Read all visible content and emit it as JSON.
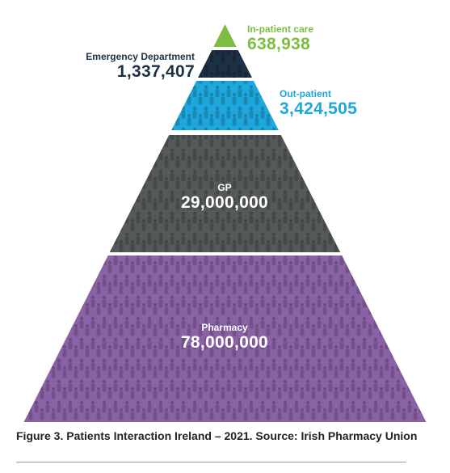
{
  "chart_data": {
    "type": "pyramid",
    "caption": "Figure 3. Patients Interaction Ireland – 2021. Source: Irish Pharmacy Union",
    "tiers": [
      {
        "name": "In-patient care",
        "value_label": "638,938",
        "value": 638938,
        "color": "#7dbd42",
        "label_color": "#7dbd42"
      },
      {
        "name": "Emergency Department",
        "value_label": "1,337,407",
        "value": 1337407,
        "color": "#1d3044",
        "label_color": "#1d3044"
      },
      {
        "name": "Out-patient",
        "value_label": "3,424,505",
        "value": 3424505,
        "color": "#1ea7dc",
        "label_color": "#1ea7dc"
      },
      {
        "name": "GP",
        "value_label": "29,000,000",
        "value": 29000000,
        "color": "#55595a",
        "label_color": "#ffffff"
      },
      {
        "name": "Pharmacy",
        "value_label": "78,000,000",
        "value": 78000000,
        "color": "#8a63a6",
        "label_color": "#ffffff"
      }
    ]
  }
}
